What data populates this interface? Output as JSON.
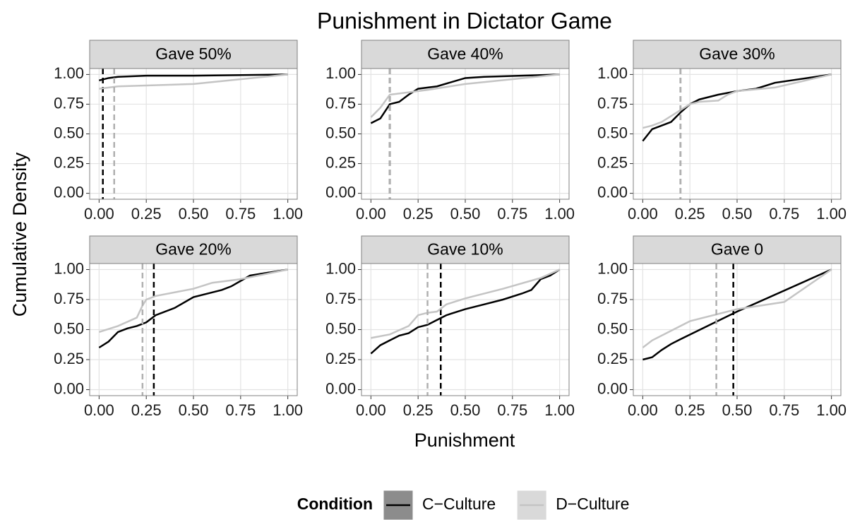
{
  "title": "Punishment in Dictator Game",
  "x_label": "Punishment",
  "y_label": "Cumulative Density",
  "legend": {
    "title": "Condition",
    "corner": "bottom"
  },
  "series": [
    {
      "name": "C−Culture",
      "color": "#000000",
      "median_color": "#000000",
      "key_fill": "#8c8c8c"
    },
    {
      "name": "D−Culture",
      "color": "#c4c4c4",
      "median_color": "#b0b0b0",
      "key_fill": "#d9d9d9"
    }
  ],
  "xlim": [
    -0.05,
    1.05
  ],
  "ylim": [
    -0.05,
    1.05
  ],
  "grid": true,
  "xticks": [
    {
      "value": 0,
      "label": "0.00"
    },
    {
      "value": 0.25,
      "label": "0.25"
    },
    {
      "value": 0.5,
      "label": "0.50"
    },
    {
      "value": 0.75,
      "label": "0.75"
    },
    {
      "value": 1,
      "label": "1.00"
    }
  ],
  "yticks": [
    {
      "value": 0,
      "label": "0.00"
    },
    {
      "value": 0.25,
      "label": "0.25"
    },
    {
      "value": 0.5,
      "label": "0.50"
    },
    {
      "value": 0.75,
      "label": "0.75"
    },
    {
      "value": 1,
      "label": "1.00"
    }
  ],
  "chart_data": [
    {
      "type": "line",
      "title": "Gave 50%",
      "series": [
        {
          "x": [
            0,
            0.05,
            0.1,
            0.25,
            0.5,
            1
          ],
          "values": [
            0.95,
            0.97,
            0.98,
            0.99,
            0.99,
            1
          ],
          "median": 0.02
        },
        {
          "x": [
            0,
            0.1,
            0.5,
            1
          ],
          "values": [
            0.88,
            0.9,
            0.92,
            1
          ],
          "median": 0.08
        }
      ]
    },
    {
      "type": "line",
      "title": "Gave 40%",
      "series": [
        {
          "x": [
            0,
            0.05,
            0.1,
            0.15,
            0.2,
            0.25,
            0.35,
            0.5,
            0.6,
            1
          ],
          "values": [
            0.59,
            0.63,
            0.75,
            0.77,
            0.83,
            0.88,
            0.9,
            0.97,
            0.98,
            1
          ],
          "median": 0.1
        },
        {
          "x": [
            0,
            0.05,
            0.1,
            0.2,
            0.3,
            0.5,
            1
          ],
          "values": [
            0.64,
            0.72,
            0.83,
            0.85,
            0.87,
            0.92,
            1
          ],
          "median": 0.1
        }
      ]
    },
    {
      "type": "line",
      "title": "Gave 30%",
      "series": [
        {
          "x": [
            0,
            0.05,
            0.15,
            0.2,
            0.25,
            0.3,
            0.4,
            0.5,
            0.6,
            0.7,
            1
          ],
          "values": [
            0.44,
            0.54,
            0.6,
            0.68,
            0.75,
            0.79,
            0.83,
            0.86,
            0.88,
            0.93,
            1
          ],
          "median": 0.2
        },
        {
          "x": [
            0,
            0.05,
            0.1,
            0.15,
            0.2,
            0.25,
            0.3,
            0.4,
            0.45,
            0.5,
            0.7,
            1
          ],
          "values": [
            0.55,
            0.57,
            0.6,
            0.65,
            0.7,
            0.75,
            0.77,
            0.78,
            0.83,
            0.86,
            0.89,
            1
          ],
          "median": 0.2
        }
      ]
    },
    {
      "type": "line",
      "title": "Gave 20%",
      "series": [
        {
          "x": [
            0,
            0.05,
            0.1,
            0.15,
            0.2,
            0.25,
            0.3,
            0.4,
            0.5,
            0.6,
            0.65,
            0.7,
            0.8,
            1
          ],
          "values": [
            0.35,
            0.4,
            0.48,
            0.51,
            0.53,
            0.56,
            0.62,
            0.68,
            0.77,
            0.81,
            0.83,
            0.86,
            0.95,
            1
          ],
          "median": 0.29
        },
        {
          "x": [
            0,
            0.1,
            0.2,
            0.23,
            0.25,
            0.3,
            0.5,
            0.6,
            0.75,
            1
          ],
          "values": [
            0.48,
            0.53,
            0.6,
            0.7,
            0.75,
            0.78,
            0.84,
            0.89,
            0.92,
            1
          ],
          "median": 0.23
        }
      ]
    },
    {
      "type": "line",
      "title": "Gave 10%",
      "series": [
        {
          "x": [
            0,
            0.05,
            0.1,
            0.15,
            0.2,
            0.25,
            0.3,
            0.35,
            0.4,
            0.5,
            0.6,
            0.7,
            0.8,
            0.85,
            0.9,
            0.95,
            1
          ],
          "values": [
            0.3,
            0.37,
            0.41,
            0.45,
            0.47,
            0.52,
            0.54,
            0.58,
            0.62,
            0.67,
            0.71,
            0.75,
            0.8,
            0.83,
            0.92,
            0.95,
            1
          ],
          "median": 0.37
        },
        {
          "x": [
            0,
            0.1,
            0.2,
            0.25,
            0.3,
            0.35,
            0.4,
            0.5,
            0.7,
            0.9,
            1
          ],
          "values": [
            0.43,
            0.46,
            0.53,
            0.62,
            0.64,
            0.65,
            0.71,
            0.76,
            0.84,
            0.93,
            1
          ],
          "median": 0.3
        }
      ]
    },
    {
      "type": "line",
      "title": "Gave 0",
      "series": [
        {
          "x": [
            0,
            0.05,
            0.1,
            0.15,
            0.2,
            0.5,
            1
          ],
          "values": [
            0.25,
            0.27,
            0.33,
            0.38,
            0.42,
            0.65,
            1
          ],
          "median": 0.48
        },
        {
          "x": [
            0,
            0.05,
            0.25,
            0.5,
            0.75,
            1
          ],
          "values": [
            0.35,
            0.41,
            0.57,
            0.67,
            0.73,
            1
          ],
          "median": 0.39
        }
      ]
    }
  ]
}
